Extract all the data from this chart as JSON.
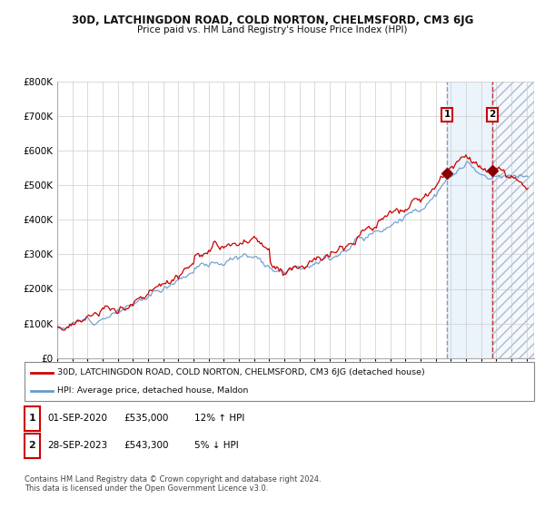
{
  "title": "30D, LATCHINGDON ROAD, COLD NORTON, CHELMSFORD, CM3 6JG",
  "subtitle": "Price paid vs. HM Land Registry's House Price Index (HPI)",
  "legend_line1": "30D, LATCHINGDON ROAD, COLD NORTON, CHELMSFORD, CM3 6JG (detached house)",
  "legend_line2": "HPI: Average price, detached house, Maldon",
  "annotation1_date": "01-SEP-2020",
  "annotation1_price": "£535,000",
  "annotation1_hpi": "12% ↑ HPI",
  "annotation2_date": "28-SEP-2023",
  "annotation2_price": "£543,300",
  "annotation2_hpi": "5% ↓ HPI",
  "footer": "Contains HM Land Registry data © Crown copyright and database right 2024.\nThis data is licensed under the Open Government Licence v3.0.",
  "sale1_year": 2020.75,
  "sale2_year": 2023.75,
  "sale1_value": 535000,
  "sale2_value": 543300,
  "red_color": "#cc0000",
  "blue_color": "#6699cc",
  "shade_color": "#d8e8f8",
  "vline1_color": "#8899bb",
  "vline2_color": "#cc3333",
  "ylim_max": 800000,
  "xlim_min": 1995,
  "xlim_max": 2026.5,
  "background_color": "#ffffff"
}
